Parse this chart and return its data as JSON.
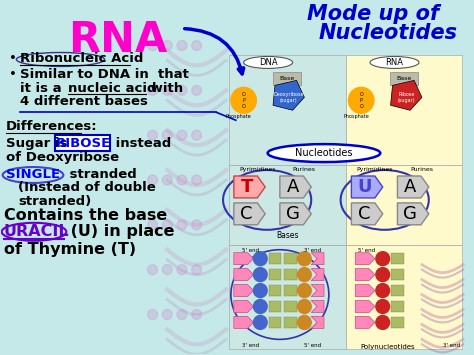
{
  "bg_color": "#c5e8e8",
  "title": "RNA",
  "title_color": "#ff00cc",
  "hw_line1": "Mode up of",
  "hw_line2": "Nucleotides",
  "hw_color": "#0000cc",
  "bullet1": "Ribonucleic Acid",
  "bullet2a": "Similar to DNA in  that",
  "bullet2b": "it is a ",
  "bullet2c": "nucleic acid",
  "bullet2d": " with",
  "bullet2e": "4 different bases",
  "diff_label": "Differences:",
  "sugar_pre": "Sugar is ",
  "ribose_text": "RIBOSE",
  "ribose_color": "#0000ff",
  "sugar_post": " instead",
  "deoxy_line": "of Deoxyribose",
  "single_text": "SINGLE",
  "single_color": "#0000ff",
  "stranded_text": " stranded",
  "instead_text": "(Instead of double",
  "stranded2_text": "stranded)",
  "contains_text": "Contains the base",
  "uracil_text": "URACIL",
  "uracil_color": "#6600cc",
  "uracil_rest": " (U) in place",
  "thymine_text": "of Thymine (T)",
  "panel_cyan": "#b8e8e0",
  "panel_yellow": "#fffacc",
  "dna_blue": "#3366cc",
  "rna_red": "#cc2222",
  "phosphate_yellow": "#ffaa00",
  "base_gray": "#bbbbaa",
  "pink_strand": "#ff88cc",
  "pink_strand2": "#ee66aa"
}
